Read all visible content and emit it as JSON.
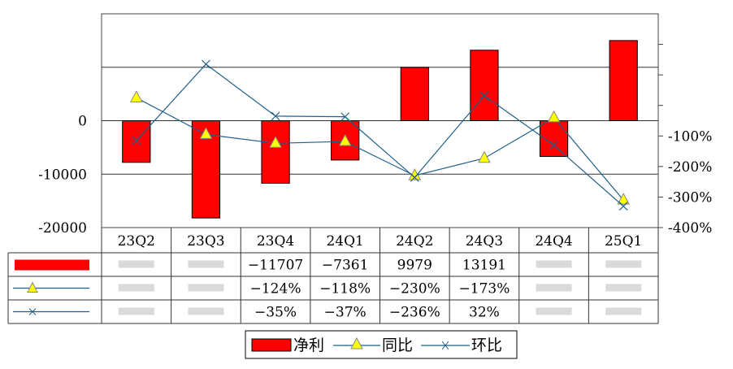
{
  "chart_data": {
    "type": "bar+line",
    "categories": [
      "23Q2",
      "23Q3",
      "23Q4",
      "24Q1",
      "24Q2",
      "24Q3",
      "24Q4",
      "25Q1"
    ],
    "left_axis": {
      "ticks": [
        "0",
        "-10000",
        "-20000"
      ],
      "range": [
        -20000,
        20000
      ]
    },
    "right_axis": {
      "ticks": [
        "-100%",
        "-200%",
        "-300%",
        "-400%"
      ],
      "range": [
        -400,
        300
      ]
    },
    "series": [
      {
        "name": "净利",
        "type": "bar",
        "axis": "left",
        "color": "#ff0000",
        "values": [
          -7800,
          -18200,
          -11707,
          -7361,
          9979,
          13191,
          -6700,
          15000
        ]
      },
      {
        "name": "同比",
        "type": "line",
        "axis": "right",
        "color": "#1f5f8b",
        "marker": "triangle",
        "marker_color": "#ffff00",
        "values": [
          25,
          -95,
          -124,
          -118,
          -230,
          -173,
          -40,
          -310
        ]
      },
      {
        "name": "环比",
        "type": "line",
        "axis": "right",
        "color": "#1f5f8b",
        "marker": "x",
        "values": [
          -115,
          135,
          -35,
          -37,
          -236,
          32,
          -130,
          -330
        ]
      }
    ],
    "table": {
      "rows": [
        {
          "series": "净利",
          "cells": [
            "",
            "",
            "-11707",
            "-7361",
            "9979",
            "13191",
            "",
            ""
          ]
        },
        {
          "series": "同比",
          "cells": [
            "",
            "",
            "-124%",
            "-118%",
            "-230%",
            "-173%",
            "",
            ""
          ]
        },
        {
          "series": "环比",
          "cells": [
            "",
            "",
            "-35%",
            "-37%",
            "-236%",
            "32%",
            "",
            ""
          ]
        }
      ]
    },
    "legend": {
      "position": "bottom",
      "items": [
        "净利",
        "同比",
        "环比"
      ]
    }
  }
}
